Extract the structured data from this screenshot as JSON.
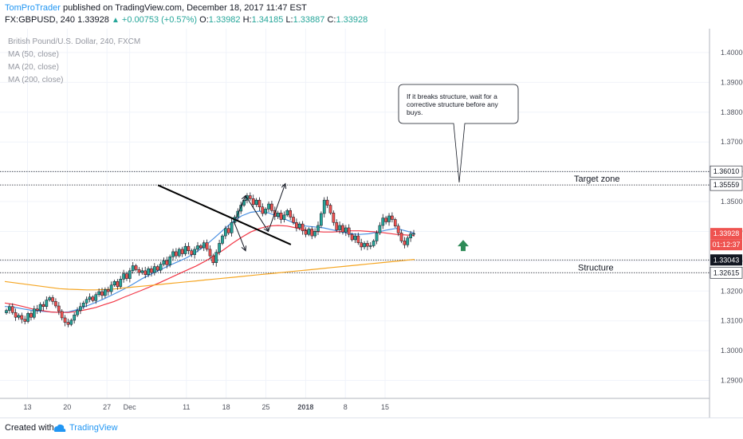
{
  "header": {
    "author": "TomProTrader",
    "published": "published on TradingView.com, December 18, 2017 11:47 EST",
    "symbol": "FX:GBPUSD, 240",
    "last": "1.33928",
    "change": "+0.00753 (+0.57%)",
    "o_label": "O:",
    "o_value": "1.33982",
    "h_label": "H:",
    "h_value": "1.34185",
    "l_label": "L:",
    "l_value": "1.33887",
    "c_label": "C:",
    "c_value": "1.33928"
  },
  "legend": {
    "title": "British Pound/U.S. Dollar, 240, FXCM",
    "ma50": "MA (50, close)",
    "ma20": "MA (20, close)",
    "ma200": "MA (200, close)"
  },
  "annotations": {
    "callout": "If it breaks structure, wait for a corrective structure before any buys.",
    "target_zone": "Target zone",
    "structure": "Structure"
  },
  "footer": {
    "created_with": "Created with",
    "brand": "TradingView"
  },
  "colors": {
    "up": "#26a69a",
    "down": "#ef5350",
    "ma50": "#f23645",
    "ma20": "#4a90e2",
    "ma200": "#f5a623",
    "trendline": "#000000",
    "arrow": "#2e8b57",
    "price_tag": "#ef5350",
    "level_tag": "#131722"
  },
  "chart_data": {
    "type": "candlestick",
    "symbol": "FX:GBPUSD",
    "interval": "240",
    "ylim": [
      1.284,
      1.408
    ],
    "y_ticks": [
      "1.40000",
      "1.39000",
      "1.38000",
      "1.37000",
      "1.36000",
      "1.35000",
      "1.34000",
      "1.33000",
      "1.32000",
      "1.31000",
      "1.30000",
      "1.29000"
    ],
    "x_ticks": [
      {
        "label": "13",
        "day": 13
      },
      {
        "label": "20",
        "day": 20
      },
      {
        "label": "27",
        "day": 27
      },
      {
        "label": "Dec",
        "day": 31
      },
      {
        "label": "11",
        "day": 41
      },
      {
        "label": "18",
        "day": 48
      },
      {
        "label": "25",
        "day": 55
      },
      {
        "label": "2018",
        "day": 62
      },
      {
        "label": "8",
        "day": 69
      },
      {
        "label": "15",
        "day": 76
      }
    ],
    "candle_closes": [
      1.3135,
      1.3148,
      1.3128,
      1.3112,
      1.3118,
      1.3105,
      1.3098,
      1.3125,
      1.3112,
      1.314,
      1.3135,
      1.3155,
      1.3148,
      1.317,
      1.3178,
      1.3165,
      1.315,
      1.3132,
      1.311,
      1.3095,
      1.3088,
      1.3102,
      1.312,
      1.3135,
      1.3148,
      1.316,
      1.3172,
      1.318,
      1.3168,
      1.3188,
      1.3198,
      1.3185,
      1.3205,
      1.3198,
      1.322,
      1.3232,
      1.3215,
      1.324,
      1.3258,
      1.3242,
      1.3268,
      1.3285,
      1.3272,
      1.3262,
      1.3268,
      1.3255,
      1.3275,
      1.3262,
      1.3282,
      1.327,
      1.329,
      1.3302,
      1.3288,
      1.3315,
      1.3332,
      1.3318,
      1.334,
      1.3325,
      1.335,
      1.3335,
      1.3322,
      1.334,
      1.3352,
      1.3345,
      1.3362,
      1.334,
      1.3318,
      1.3295,
      1.333,
      1.336,
      1.3385,
      1.341,
      1.3395,
      1.343,
      1.3448,
      1.3468,
      1.3488,
      1.3505,
      1.352,
      1.351,
      1.349,
      1.3505,
      1.3482,
      1.346,
      1.3475,
      1.3492,
      1.347,
      1.345,
      1.3462,
      1.344,
      1.3455,
      1.347,
      1.3448,
      1.343,
      1.3412,
      1.3425,
      1.3402,
      1.339,
      1.3408,
      1.3385,
      1.34,
      1.342,
      1.346,
      1.3505,
      1.3488,
      1.3462,
      1.343,
      1.3405,
      1.342,
      1.3398,
      1.3412,
      1.339,
      1.3372,
      1.3385,
      1.3362,
      1.3348,
      1.336,
      1.335,
      1.3352,
      1.3368,
      1.3395,
      1.342,
      1.3445,
      1.3432,
      1.3452,
      1.344,
      1.3418,
      1.3395,
      1.3368,
      1.3355,
      1.3378,
      1.3392,
      1.3393
    ],
    "lines": [
      {
        "name": "MA (20, close)",
        "values": [
          1.3148,
          1.3146,
          1.314,
          1.3135,
          1.3132,
          1.313,
          1.3128,
          1.313,
          1.3138,
          1.315,
          1.3162,
          1.3175,
          1.319,
          1.3205,
          1.3222,
          1.324,
          1.3256,
          1.327,
          1.3285,
          1.3298,
          1.3312,
          1.333,
          1.3352,
          1.3378,
          1.3405,
          1.3432,
          1.3452,
          1.3464,
          1.3468,
          1.3462,
          1.345,
          1.3438,
          1.3425,
          1.3418,
          1.3415,
          1.3412,
          1.3405,
          1.3398,
          1.3392,
          1.339,
          1.3392,
          1.3398,
          1.3405,
          1.341,
          1.3402,
          1.3394
        ]
      },
      {
        "name": "MA (50, close)",
        "values": [
          1.316,
          1.3155,
          1.3148,
          1.314,
          1.3135,
          1.313,
          1.3128,
          1.3128,
          1.3132,
          1.3138,
          1.3145,
          1.3155,
          1.3165,
          1.3178,
          1.319,
          1.3202,
          1.3215,
          1.3228,
          1.3242,
          1.3256,
          1.327,
          1.3284,
          1.33,
          1.3318,
          1.3338,
          1.336,
          1.338,
          1.3398,
          1.341,
          1.3418,
          1.342,
          1.3418,
          1.3412,
          1.3405,
          1.34,
          1.3398,
          1.3398,
          1.34,
          1.3402,
          1.3402,
          1.34,
          1.3398,
          1.3394,
          1.339,
          1.3388,
          1.3386
        ]
      },
      {
        "name": "MA (200, close)",
        "values": [
          1.3232,
          1.3228,
          1.3224,
          1.322,
          1.3216,
          1.3212,
          1.3208,
          1.3206,
          1.3205,
          1.3204,
          1.3204,
          1.3205,
          1.3207,
          1.321,
          1.3213,
          1.3216,
          1.3219,
          1.3222,
          1.3225,
          1.3228,
          1.3231,
          1.3234,
          1.3237,
          1.324,
          1.3243,
          1.3246,
          1.3249,
          1.3252,
          1.3255,
          1.3258,
          1.3261,
          1.3264,
          1.3267,
          1.327,
          1.3273,
          1.3276,
          1.3279,
          1.3282,
          1.3285,
          1.3288,
          1.3291,
          1.3294,
          1.3297,
          1.33,
          1.3303,
          1.3306
        ]
      }
    ],
    "levels": [
      {
        "label": "1.36010",
        "value": 1.3601
      },
      {
        "label": "1.35559",
        "value": 1.35559
      },
      {
        "label": "1.33043",
        "value": 1.33043
      },
      {
        "label": "1.32615",
        "value": 1.32615
      }
    ],
    "current_price": {
      "label": "1.33928",
      "value": 1.33928,
      "countdown": "01:12:37"
    },
    "trendline": {
      "from": {
        "day": 36,
        "price": 1.3555
      },
      "to": {
        "day": 58,
        "price": 1.3372
      }
    },
    "projections": [
      {
        "day": 49,
        "price": 1.343
      },
      {
        "day": 51,
        "price": 1.352
      },
      {
        "day": 55,
        "price": 1.34
      },
      {
        "day": 58,
        "price": 1.356
      }
    ],
    "projection_down": [
      {
        "day": 49,
        "price": 1.343
      },
      {
        "day": 51,
        "price": 1.3335
      }
    ]
  }
}
